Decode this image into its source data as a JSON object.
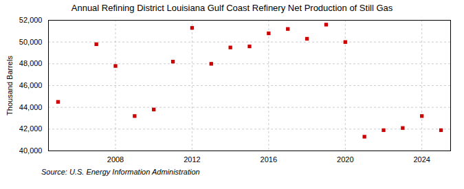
{
  "chart_data": {
    "type": "scatter",
    "title": "Annual Refining District Louisiana Gulf Coast Refinery Net Production of Still Gas",
    "ylabel": "Thousand Barrels",
    "source": "Source: U.S. Energy Information Administration",
    "x": [
      2005,
      2007,
      2008,
      2009,
      2010,
      2011,
      2012,
      2013,
      2014,
      2015,
      2016,
      2017,
      2018,
      2019,
      2020,
      2021,
      2022,
      2023,
      2024,
      2025
    ],
    "values": [
      44500,
      49800,
      47800,
      43200,
      43800,
      48200,
      51300,
      48000,
      49500,
      49600,
      50800,
      51200,
      50300,
      51600,
      50000,
      41300,
      41900,
      42100,
      43200,
      41900
    ],
    "color": "#cc0000",
    "marker": "square",
    "xlim": [
      2004.5,
      2025.5
    ],
    "xticks": [
      2008,
      2012,
      2016,
      2020,
      2024
    ],
    "ylim": [
      40000,
      52000
    ],
    "yticks": [
      {
        "value": 40000,
        "label": "40,000"
      },
      {
        "value": 42000,
        "label": "42,000"
      },
      {
        "value": 44000,
        "label": "44,000"
      },
      {
        "value": 46000,
        "label": "46,000"
      },
      {
        "value": 48000,
        "label": "48,000"
      },
      {
        "value": 50000,
        "label": "50,000"
      },
      {
        "value": 52000,
        "label": "52,000"
      }
    ],
    "grid": true
  }
}
